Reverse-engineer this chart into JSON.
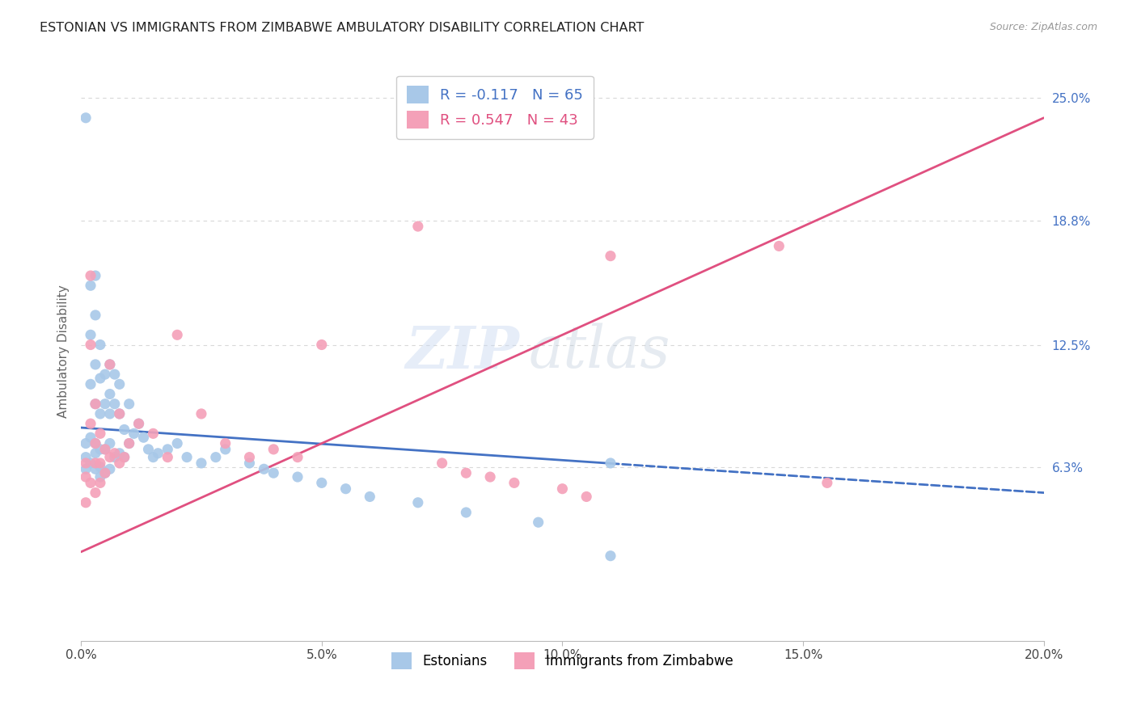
{
  "title": "ESTONIAN VS IMMIGRANTS FROM ZIMBABWE AMBULATORY DISABILITY CORRELATION CHART",
  "source": "Source: ZipAtlas.com",
  "ylabel": "Ambulatory Disability",
  "ytick_labels": [
    "6.3%",
    "12.5%",
    "18.8%",
    "25.0%"
  ],
  "ytick_values": [
    0.063,
    0.125,
    0.188,
    0.25
  ],
  "xtick_labels": [
    "0.0%",
    "5.0%",
    "10.0%",
    "15.0%",
    "20.0%"
  ],
  "xtick_values": [
    0.0,
    0.05,
    0.1,
    0.15,
    0.2
  ],
  "xmin": 0.0,
  "xmax": 0.2,
  "ymin": -0.025,
  "ymax": 0.268,
  "color_estonian": "#a8c8e8",
  "color_zimbabwe": "#f4a0b8",
  "color_line_estonian": "#4472c4",
  "color_line_zimbabwe": "#e05080",
  "background_color": "#ffffff",
  "grid_color": "#d8d8d8",
  "watermark": "ZIPatlas",
  "legend1_label": "R = -0.117   N = 65",
  "legend2_label": "R = 0.547   N = 43",
  "legend1_color": "#4472c4",
  "legend2_color": "#e05080",
  "bottom_label1": "Estonians",
  "bottom_label2": "Immigrants from Zimbabwe",
  "estonian_x": [
    0.001,
    0.001,
    0.001,
    0.001,
    0.002,
    0.002,
    0.002,
    0.002,
    0.002,
    0.003,
    0.003,
    0.003,
    0.003,
    0.003,
    0.003,
    0.003,
    0.004,
    0.004,
    0.004,
    0.004,
    0.004,
    0.004,
    0.005,
    0.005,
    0.005,
    0.005,
    0.006,
    0.006,
    0.006,
    0.006,
    0.006,
    0.007,
    0.007,
    0.007,
    0.008,
    0.008,
    0.008,
    0.009,
    0.009,
    0.01,
    0.01,
    0.011,
    0.012,
    0.013,
    0.014,
    0.015,
    0.016,
    0.018,
    0.02,
    0.022,
    0.025,
    0.028,
    0.03,
    0.035,
    0.038,
    0.04,
    0.045,
    0.05,
    0.055,
    0.06,
    0.07,
    0.08,
    0.095,
    0.11,
    0.11
  ],
  "estonian_y": [
    0.24,
    0.075,
    0.068,
    0.062,
    0.155,
    0.13,
    0.105,
    0.078,
    0.065,
    0.16,
    0.14,
    0.115,
    0.095,
    0.075,
    0.07,
    0.062,
    0.125,
    0.108,
    0.09,
    0.072,
    0.063,
    0.058,
    0.11,
    0.095,
    0.072,
    0.06,
    0.115,
    0.1,
    0.09,
    0.075,
    0.062,
    0.11,
    0.095,
    0.068,
    0.105,
    0.09,
    0.07,
    0.082,
    0.068,
    0.095,
    0.075,
    0.08,
    0.085,
    0.078,
    0.072,
    0.068,
    0.07,
    0.072,
    0.075,
    0.068,
    0.065,
    0.068,
    0.072,
    0.065,
    0.062,
    0.06,
    0.058,
    0.055,
    0.052,
    0.048,
    0.045,
    0.04,
    0.035,
    0.018,
    0.065
  ],
  "zimbabwe_x": [
    0.001,
    0.001,
    0.001,
    0.002,
    0.002,
    0.002,
    0.002,
    0.003,
    0.003,
    0.003,
    0.003,
    0.004,
    0.004,
    0.004,
    0.005,
    0.005,
    0.006,
    0.006,
    0.007,
    0.008,
    0.008,
    0.009,
    0.01,
    0.012,
    0.015,
    0.018,
    0.02,
    0.025,
    0.03,
    0.035,
    0.04,
    0.045,
    0.05,
    0.07,
    0.075,
    0.08,
    0.085,
    0.09,
    0.1,
    0.105,
    0.11,
    0.145,
    0.155
  ],
  "zimbabwe_y": [
    0.065,
    0.058,
    0.045,
    0.16,
    0.125,
    0.085,
    0.055,
    0.095,
    0.075,
    0.065,
    0.05,
    0.08,
    0.065,
    0.055,
    0.072,
    0.06,
    0.115,
    0.068,
    0.07,
    0.09,
    0.065,
    0.068,
    0.075,
    0.085,
    0.08,
    0.068,
    0.13,
    0.09,
    0.075,
    0.068,
    0.072,
    0.068,
    0.125,
    0.185,
    0.065,
    0.06,
    0.058,
    0.055,
    0.052,
    0.048,
    0.17,
    0.175,
    0.055
  ],
  "est_line_x0": 0.0,
  "est_line_x1": 0.2,
  "est_line_y0": 0.083,
  "est_line_y1": 0.05,
  "est_line_solid_end": 0.11,
  "zim_line_x0": 0.0,
  "zim_line_x1": 0.2,
  "zim_line_y0": 0.02,
  "zim_line_y1": 0.24
}
